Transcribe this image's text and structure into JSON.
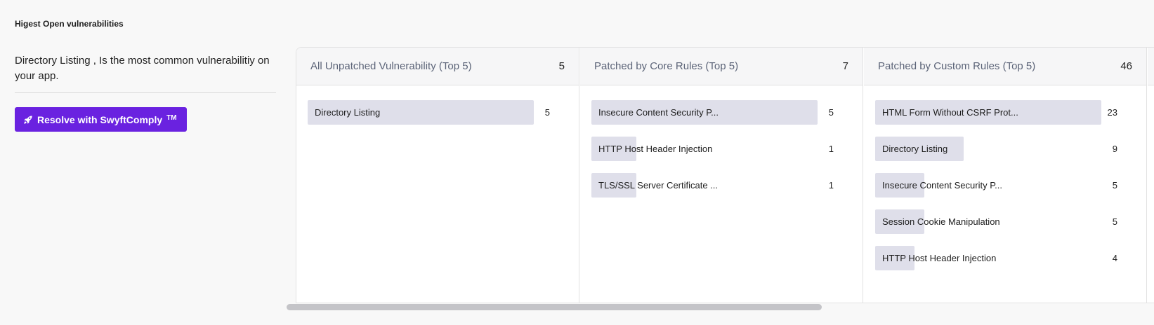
{
  "section": {
    "title": "Higest Open vulnerabilities"
  },
  "left_panel": {
    "summary": "Directory Listing , Is the most common vulnerabilitiy on your app.",
    "resolve_button": {
      "label": "Resolve with SwyftComply",
      "trademark": "TM",
      "icon": "rocket-icon"
    }
  },
  "colors": {
    "accent": "#6a22e0",
    "bar": "#dfdfea"
  },
  "columns": [
    {
      "title": "All Unpatched Vulnerability (Top 5)",
      "count": "5",
      "max": 5,
      "items": [
        {
          "label": "Directory Listing",
          "value": 5
        }
      ]
    },
    {
      "title": "Patched by Core Rules (Top 5)",
      "count": "7",
      "max": 5,
      "items": [
        {
          "label": "Insecure Content Security P...",
          "value": 5
        },
        {
          "label": "HTTP Host Header Injection",
          "value": 1
        },
        {
          "label": "TLS/SSL Server Certificate ...",
          "value": 1
        }
      ]
    },
    {
      "title": "Patched by Custom Rules (Top 5)",
      "count": "46",
      "max": 23,
      "items": [
        {
          "label": "HTML Form Without CSRF Prot...",
          "value": 23
        },
        {
          "label": "Directory Listing",
          "value": 9
        },
        {
          "label": "Insecure Content Security P...",
          "value": 5
        },
        {
          "label": "Session Cookie Manipulation",
          "value": 5
        },
        {
          "label": "HTTP Host Header Injection",
          "value": 4
        }
      ]
    }
  ]
}
